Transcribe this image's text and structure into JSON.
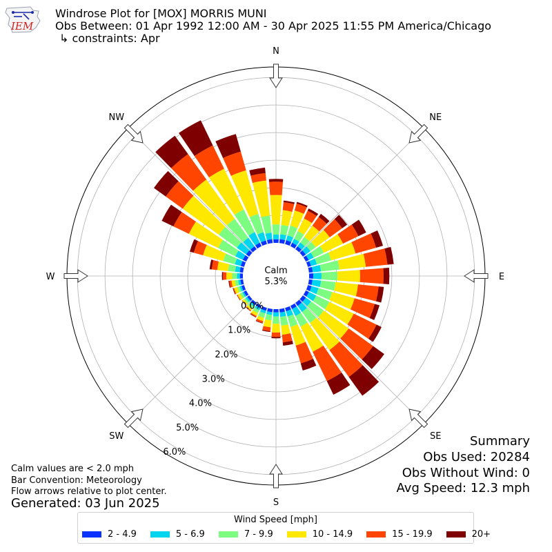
{
  "header": {
    "logo_text": "IEM",
    "title": "Windrose Plot for [MOX] MORRIS MUNI",
    "obs_between": "Obs Between: 01 Apr 1992 12:00 AM - 30 Apr 2025 11:55 PM America/Chicago",
    "constraints": "↳ constraints: Apr"
  },
  "summary": {
    "heading": "Summary",
    "obs_used": "Obs Used: 20284",
    "obs_without_wind": "Obs Without Wind: 0",
    "avg_speed": "Avg Speed: 12.3 mph"
  },
  "notes": {
    "calm_def": "Calm values are < 2.0 mph",
    "bar_convention": "Bar Convention: Meteorology",
    "flow_arrows": "Flow arrows relative to plot center.",
    "generated": "Generated: 03 Jun 2025"
  },
  "colors": {
    "bins": [
      "#0a33ff",
      "#00d5f0",
      "#7cfc80",
      "#ffe800",
      "#ff4500",
      "#7f0000"
    ],
    "grid": "#b0b0b0",
    "outline": "#000000"
  },
  "chart_data": {
    "type": "windrose",
    "calm_label": "Calm",
    "calm_value": "5.3%",
    "directions": [
      "N",
      "NE",
      "E",
      "SE",
      "S",
      "SW",
      "W",
      "NW"
    ],
    "radial_axis": {
      "ticks": [
        0,
        1,
        2,
        3,
        4,
        5,
        6
      ],
      "labels": [
        "0.0%",
        "1.0%",
        "2.0%",
        "3.0%",
        "4.0%",
        "5.0%",
        "6.0%"
      ],
      "range": [
        0,
        6.38
      ]
    },
    "legend_title": "Wind Speed [mph]",
    "bins": [
      "2 - 4.9",
      "5 - 6.9",
      "7 - 9.9",
      "10 - 14.9",
      "15 - 19.9",
      "20+"
    ],
    "sector_directions_deg": [
      0,
      10,
      20,
      30,
      40,
      50,
      60,
      70,
      80,
      90,
      100,
      110,
      120,
      130,
      140,
      150,
      160,
      170,
      180,
      190,
      200,
      210,
      220,
      230,
      240,
      250,
      260,
      270,
      280,
      290,
      300,
      310,
      320,
      330,
      340,
      350
    ],
    "cumulative_percent": [
      [
        0.13,
        0.3,
        0.67,
        1.74,
        2.22,
        2.32
      ],
      [
        0.14,
        0.32,
        0.66,
        1.2,
        1.49,
        1.55
      ],
      [
        0.15,
        0.33,
        0.7,
        1.27,
        1.53,
        1.59
      ],
      [
        0.14,
        0.3,
        0.61,
        1.12,
        1.43,
        1.52
      ],
      [
        0.13,
        0.3,
        0.55,
        1.05,
        1.44,
        1.58
      ],
      [
        0.13,
        0.34,
        0.58,
        1.2,
        1.76,
        1.98
      ],
      [
        0.12,
        0.32,
        0.73,
        1.5,
        2.12,
        2.43
      ],
      [
        0.12,
        0.34,
        0.88,
        1.8,
        2.57,
        2.83
      ],
      [
        0.14,
        0.44,
        1.11,
        2.07,
        2.86,
        3.09
      ],
      [
        0.15,
        0.45,
        1.03,
        1.85,
        2.7,
        2.91
      ],
      [
        0.13,
        0.44,
        0.97,
        1.79,
        2.54,
        2.73
      ],
      [
        0.14,
        0.4,
        0.92,
        1.76,
        2.52,
        2.7
      ],
      [
        0.13,
        0.42,
        0.95,
        1.93,
        2.85,
        3.05
      ],
      [
        0.14,
        0.37,
        0.94,
        2.05,
        3.14,
        3.64
      ],
      [
        0.14,
        0.41,
        0.9,
        2.11,
        3.31,
        4.15
      ],
      [
        0.13,
        0.41,
        0.84,
        1.85,
        3.03,
        3.58
      ],
      [
        0.13,
        0.33,
        0.72,
        1.42,
        2.09,
        2.36
      ],
      [
        0.13,
        0.29,
        0.61,
        0.94,
        1.22,
        1.34
      ],
      [
        0.12,
        0.27,
        0.53,
        0.85,
        1.01,
        1.06
      ],
      [
        0.12,
        0.22,
        0.42,
        0.67,
        0.81,
        0.84
      ],
      [
        0.11,
        0.21,
        0.38,
        0.5,
        0.57,
        0.59
      ],
      [
        0.1,
        0.18,
        0.3,
        0.41,
        0.45,
        0.47
      ],
      [
        0.1,
        0.17,
        0.26,
        0.34,
        0.37,
        0.38
      ],
      [
        0.09,
        0.16,
        0.23,
        0.31,
        0.32,
        0.33
      ],
      [
        0.1,
        0.16,
        0.25,
        0.35,
        0.37,
        0.38
      ],
      [
        0.1,
        0.17,
        0.26,
        0.38,
        0.41,
        0.43
      ],
      [
        0.1,
        0.18,
        0.3,
        0.42,
        0.5,
        0.53
      ],
      [
        0.11,
        0.22,
        0.39,
        0.6,
        0.72,
        0.76
      ],
      [
        0.12,
        0.29,
        0.55,
        0.94,
        1.14,
        1.22
      ],
      [
        0.13,
        0.35,
        0.79,
        1.55,
        1.9,
        2.05
      ],
      [
        0.14,
        0.44,
        1.13,
        2.31,
        2.93,
        3.4
      ],
      [
        0.14,
        0.55,
        1.36,
        2.97,
        3.73,
        4.26
      ],
      [
        0.13,
        0.51,
        1.36,
        3.11,
        4.25,
        5.07
      ],
      [
        0.14,
        0.57,
        1.48,
        3.12,
        4.06,
        5.07
      ],
      [
        0.14,
        0.45,
        1.14,
        2.78,
        3.49,
        4.15
      ],
      [
        0.14,
        0.38,
        1.0,
        2.28,
        2.55,
        2.75
      ]
    ]
  }
}
